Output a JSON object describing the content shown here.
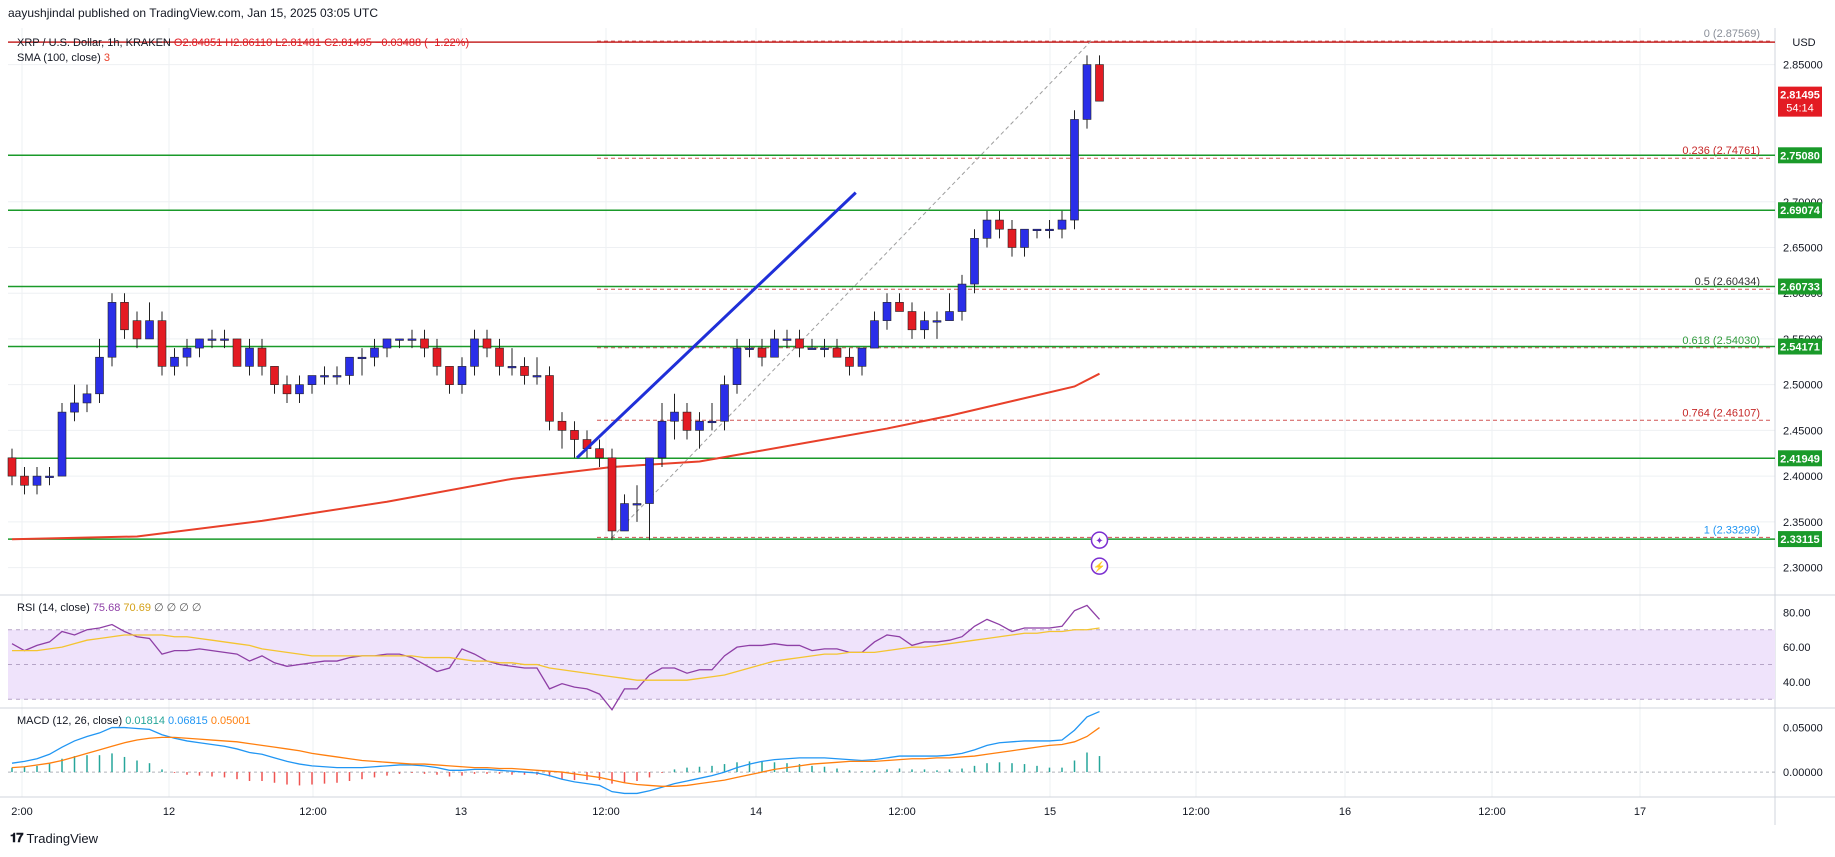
{
  "header": {
    "published": "aayushjindal published on TradingView.com, Jan 15, 2025 03:05 UTC"
  },
  "footer": {
    "brand": "TradingView",
    "logo_icon": "tradingview-logo-icon"
  },
  "colors": {
    "up": "#2a2ee8",
    "down": "#e31b23",
    "hline": "#1a9a2a",
    "trend": "#1f2fd8",
    "sma": "#e8402a",
    "fib": "#c62828",
    "rsi": "#8e3fa6",
    "rsi_ma": "#f4c430",
    "macd": "#2196f3",
    "signal": "#ff7f0e",
    "band": "#efe3fb"
  },
  "chart_data": [
    {
      "type": "candlestick",
      "title": "XRP / U.S. Dollar, 1h, KRAKEN",
      "ohlc_legend": {
        "open": "O2.84851",
        "high": "H2.86110",
        "low": "L2.81481",
        "close": "C2.81495",
        "change": "−0.03488 (−1.22%)"
      },
      "sma_label": "SMA (100, close)",
      "sma_value": "3",
      "currency": "USD",
      "ylim": [
        2.27,
        2.89
      ],
      "y_ticks": [
        "2.85000",
        "2.70000",
        "2.65000",
        "2.60000",
        "2.55000",
        "2.50000",
        "2.45000",
        "2.40000",
        "2.35000",
        "2.30000"
      ],
      "x_ticks": [
        "2:00",
        "12",
        "12:00",
        "13",
        "12:00",
        "14",
        "12:00",
        "15",
        "12:00",
        "16",
        "12:00",
        "17"
      ],
      "last_price": "2.81495",
      "countdown": "54:14",
      "horizontal_levels": [
        "2.75080",
        "2.69074",
        "2.60733",
        "2.54171",
        "2.41949",
        "2.33115"
      ],
      "fib_levels": [
        {
          "ratio": "0",
          "value": "2.87569",
          "text": "0 (2.87569)"
        },
        {
          "ratio": "0.236",
          "value": "2.74761",
          "text": "0.236 (2.74761)"
        },
        {
          "ratio": "0.5",
          "value": "2.60434",
          "text": "0.5 (2.60434)"
        },
        {
          "ratio": "0.618",
          "value": "2.54030",
          "text": "0.618 (2.54030)"
        },
        {
          "ratio": "0.764",
          "value": "2.46107",
          "text": "0.764 (2.46107)"
        },
        {
          "ratio": "1",
          "value": "2.33299",
          "text": "1 (2.33299)"
        }
      ],
      "trendline": {
        "from": [
          45.2,
          2.42
        ],
        "to": [
          67.5,
          2.71
        ]
      },
      "candles": [
        [
          0,
          2.42,
          2.43,
          2.39,
          2.4
        ],
        [
          1,
          2.4,
          2.41,
          2.38,
          2.39
        ],
        [
          2,
          2.39,
          2.41,
          2.38,
          2.4
        ],
        [
          3,
          2.4,
          2.41,
          2.39,
          2.4
        ],
        [
          4,
          2.4,
          2.48,
          2.4,
          2.47
        ],
        [
          5,
          2.47,
          2.5,
          2.46,
          2.48
        ],
        [
          6,
          2.48,
          2.5,
          2.47,
          2.49
        ],
        [
          7,
          2.49,
          2.55,
          2.48,
          2.53
        ],
        [
          8,
          2.53,
          2.6,
          2.52,
          2.59
        ],
        [
          9,
          2.59,
          2.6,
          2.55,
          2.56
        ],
        [
          10,
          2.57,
          2.58,
          2.54,
          2.55
        ],
        [
          11,
          2.55,
          2.59,
          2.55,
          2.57
        ],
        [
          12,
          2.57,
          2.58,
          2.51,
          2.52
        ],
        [
          13,
          2.52,
          2.54,
          2.51,
          2.53
        ],
        [
          14,
          2.53,
          2.55,
          2.52,
          2.54
        ],
        [
          15,
          2.54,
          2.55,
          2.53,
          2.55
        ],
        [
          16,
          2.55,
          2.56,
          2.54,
          2.55
        ],
        [
          17,
          2.55,
          2.56,
          2.54,
          2.55
        ],
        [
          18,
          2.55,
          2.55,
          2.52,
          2.52
        ],
        [
          19,
          2.52,
          2.55,
          2.51,
          2.54
        ],
        [
          20,
          2.54,
          2.55,
          2.51,
          2.52
        ],
        [
          21,
          2.52,
          2.52,
          2.49,
          2.5
        ],
        [
          22,
          2.5,
          2.51,
          2.48,
          2.49
        ],
        [
          23,
          2.49,
          2.51,
          2.48,
          2.5
        ],
        [
          24,
          2.5,
          2.51,
          2.49,
          2.51
        ],
        [
          25,
          2.51,
          2.52,
          2.5,
          2.51
        ],
        [
          26,
          2.51,
          2.52,
          2.5,
          2.51
        ],
        [
          27,
          2.51,
          2.53,
          2.5,
          2.53
        ],
        [
          28,
          2.53,
          2.54,
          2.51,
          2.53
        ],
        [
          29,
          2.53,
          2.55,
          2.52,
          2.54
        ],
        [
          30,
          2.54,
          2.55,
          2.53,
          2.55
        ],
        [
          31,
          2.55,
          2.55,
          2.54,
          2.55
        ],
        [
          32,
          2.55,
          2.56,
          2.54,
          2.55
        ],
        [
          33,
          2.55,
          2.56,
          2.53,
          2.54
        ],
        [
          34,
          2.54,
          2.55,
          2.51,
          2.52
        ],
        [
          35,
          2.52,
          2.52,
          2.49,
          2.5
        ],
        [
          36,
          2.5,
          2.53,
          2.49,
          2.52
        ],
        [
          37,
          2.52,
          2.56,
          2.51,
          2.55
        ],
        [
          38,
          2.55,
          2.56,
          2.53,
          2.54
        ],
        [
          39,
          2.54,
          2.55,
          2.51,
          2.52
        ],
        [
          40,
          2.52,
          2.54,
          2.51,
          2.52
        ],
        [
          41,
          2.52,
          2.53,
          2.5,
          2.51
        ],
        [
          42,
          2.51,
          2.53,
          2.5,
          2.51
        ],
        [
          43,
          2.51,
          2.52,
          2.45,
          2.46
        ],
        [
          44,
          2.46,
          2.47,
          2.43,
          2.45
        ],
        [
          45,
          2.45,
          2.46,
          2.42,
          2.44
        ],
        [
          46,
          2.44,
          2.45,
          2.42,
          2.43
        ],
        [
          47,
          2.43,
          2.44,
          2.41,
          2.42
        ],
        [
          48,
          2.42,
          2.43,
          2.33,
          2.34
        ],
        [
          49,
          2.34,
          2.38,
          2.34,
          2.37
        ],
        [
          50,
          2.37,
          2.39,
          2.35,
          2.37
        ],
        [
          51,
          2.37,
          2.42,
          2.33,
          2.42
        ],
        [
          52,
          2.42,
          2.48,
          2.41,
          2.46
        ],
        [
          53,
          2.46,
          2.49,
          2.44,
          2.47
        ],
        [
          54,
          2.47,
          2.48,
          2.44,
          2.45
        ],
        [
          55,
          2.45,
          2.47,
          2.43,
          2.46
        ],
        [
          56,
          2.46,
          2.48,
          2.45,
          2.46
        ],
        [
          57,
          2.46,
          2.51,
          2.45,
          2.5
        ],
        [
          58,
          2.5,
          2.55,
          2.49,
          2.54
        ],
        [
          59,
          2.54,
          2.55,
          2.53,
          2.54
        ],
        [
          60,
          2.54,
          2.55,
          2.52,
          2.53
        ],
        [
          61,
          2.53,
          2.56,
          2.53,
          2.55
        ],
        [
          62,
          2.55,
          2.56,
          2.54,
          2.55
        ],
        [
          63,
          2.55,
          2.56,
          2.53,
          2.54
        ],
        [
          64,
          2.54,
          2.55,
          2.54,
          2.54
        ],
        [
          65,
          2.54,
          2.55,
          2.53,
          2.54
        ],
        [
          66,
          2.54,
          2.55,
          2.53,
          2.53
        ],
        [
          67,
          2.53,
          2.54,
          2.51,
          2.52
        ],
        [
          68,
          2.52,
          2.54,
          2.51,
          2.54
        ],
        [
          69,
          2.54,
          2.58,
          2.54,
          2.57
        ],
        [
          70,
          2.57,
          2.6,
          2.56,
          2.59
        ],
        [
          71,
          2.59,
          2.6,
          2.58,
          2.58
        ],
        [
          72,
          2.58,
          2.59,
          2.55,
          2.56
        ],
        [
          73,
          2.56,
          2.58,
          2.55,
          2.57
        ],
        [
          74,
          2.57,
          2.58,
          2.55,
          2.57
        ],
        [
          75,
          2.57,
          2.6,
          2.57,
          2.58
        ],
        [
          76,
          2.58,
          2.62,
          2.57,
          2.61
        ],
        [
          77,
          2.61,
          2.67,
          2.6,
          2.66
        ],
        [
          78,
          2.66,
          2.69,
          2.65,
          2.68
        ],
        [
          79,
          2.68,
          2.69,
          2.66,
          2.67
        ],
        [
          80,
          2.67,
          2.68,
          2.64,
          2.65
        ],
        [
          81,
          2.65,
          2.67,
          2.64,
          2.67
        ],
        [
          82,
          2.67,
          2.67,
          2.66,
          2.67
        ],
        [
          83,
          2.67,
          2.68,
          2.66,
          2.67
        ],
        [
          84,
          2.67,
          2.69,
          2.66,
          2.68
        ],
        [
          85,
          2.68,
          2.8,
          2.67,
          2.79
        ],
        [
          86,
          2.79,
          2.86,
          2.78,
          2.85
        ],
        [
          87,
          2.85,
          2.86,
          2.81,
          2.81
        ]
      ],
      "sma_points": [
        [
          0,
          2.331
        ],
        [
          10,
          2.334
        ],
        [
          20,
          2.351
        ],
        [
          30,
          2.372
        ],
        [
          40,
          2.397
        ],
        [
          48,
          2.41
        ],
        [
          55,
          2.416
        ],
        [
          60,
          2.428
        ],
        [
          65,
          2.44
        ],
        [
          70,
          2.452
        ],
        [
          75,
          2.466
        ],
        [
          80,
          2.482
        ],
        [
          85,
          2.498
        ],
        [
          87,
          2.512
        ]
      ]
    },
    {
      "type": "line",
      "title": "RSI (14, close)",
      "legend_values": [
        "75.68",
        "70.69",
        "∅",
        "∅",
        "∅",
        "∅"
      ],
      "ylim": [
        25,
        90
      ],
      "y_ticks": [
        "80.00",
        "60.00",
        "40.00"
      ],
      "band": [
        30,
        70
      ],
      "series": [
        {
          "name": "RSI",
          "values": [
            62,
            58,
            61,
            63,
            69,
            67,
            70,
            71,
            73,
            69,
            66,
            65,
            56,
            58,
            58,
            59,
            58,
            57,
            56,
            52,
            55,
            51,
            49,
            50,
            51,
            52,
            52,
            54,
            55,
            55,
            56,
            56,
            54,
            50,
            46,
            48,
            59,
            56,
            52,
            50,
            49,
            48,
            48,
            36,
            39,
            37,
            36,
            33,
            24,
            36,
            36,
            44,
            48,
            48,
            45,
            47,
            47,
            55,
            60,
            61,
            61,
            62,
            61,
            61,
            58,
            59,
            59,
            57,
            57,
            63,
            67,
            66,
            61,
            63,
            63,
            64,
            66,
            72,
            76,
            73,
            69,
            71,
            71,
            71,
            72,
            81,
            84,
            76
          ]
        },
        {
          "name": "MA",
          "values": [
            58,
            58,
            58,
            59,
            60,
            62,
            64,
            65,
            66,
            67,
            67,
            67,
            67,
            66,
            66,
            65,
            64,
            63,
            62,
            61,
            59,
            58,
            57,
            56,
            55,
            55,
            55,
            55,
            55,
            55,
            55,
            55,
            55,
            54,
            54,
            54,
            53,
            52,
            52,
            51,
            51,
            50,
            50,
            48,
            47,
            46,
            45,
            44,
            43,
            42,
            41,
            41,
            41,
            41,
            41,
            42,
            43,
            44,
            46,
            48,
            50,
            52,
            53,
            54,
            55,
            56,
            56,
            57,
            57,
            57,
            58,
            59,
            60,
            60,
            61,
            62,
            63,
            64,
            65,
            66,
            67,
            68,
            68,
            69,
            69,
            70,
            70,
            71
          ]
        }
      ]
    },
    {
      "type": "line",
      "title": "MACD (12, 26, close)",
      "legend_values": [
        "0.01814",
        "0.06815",
        "0.05001"
      ],
      "ylim": [
        -0.028,
        0.072
      ],
      "y_ticks": [
        "0.05000",
        "0.00000"
      ],
      "series": [
        {
          "name": "MACD",
          "values": [
            0.01,
            0.012,
            0.015,
            0.02,
            0.028,
            0.035,
            0.04,
            0.044,
            0.05,
            0.05,
            0.049,
            0.048,
            0.042,
            0.038,
            0.035,
            0.033,
            0.031,
            0.029,
            0.026,
            0.022,
            0.02,
            0.016,
            0.012,
            0.009,
            0.007,
            0.006,
            0.005,
            0.005,
            0.005,
            0.006,
            0.007,
            0.008,
            0.008,
            0.007,
            0.005,
            0.002,
            0.002,
            0.003,
            0.003,
            0.002,
            0.001,
            0.0,
            -0.001,
            -0.004,
            -0.008,
            -0.011,
            -0.013,
            -0.015,
            -0.022,
            -0.024,
            -0.024,
            -0.021,
            -0.017,
            -0.013,
            -0.01,
            -0.007,
            -0.004,
            0.0,
            0.005,
            0.009,
            0.012,
            0.014,
            0.015,
            0.016,
            0.016,
            0.016,
            0.015,
            0.014,
            0.013,
            0.014,
            0.016,
            0.018,
            0.018,
            0.018,
            0.018,
            0.019,
            0.021,
            0.025,
            0.03,
            0.033,
            0.034,
            0.035,
            0.035,
            0.035,
            0.036,
            0.047,
            0.062,
            0.068
          ]
        },
        {
          "name": "Signal",
          "values": [
            0.005,
            0.006,
            0.008,
            0.01,
            0.013,
            0.017,
            0.021,
            0.025,
            0.029,
            0.033,
            0.036,
            0.038,
            0.039,
            0.039,
            0.038,
            0.037,
            0.036,
            0.035,
            0.034,
            0.032,
            0.03,
            0.028,
            0.026,
            0.024,
            0.021,
            0.019,
            0.017,
            0.015,
            0.013,
            0.012,
            0.011,
            0.01,
            0.009,
            0.009,
            0.008,
            0.007,
            0.006,
            0.005,
            0.005,
            0.004,
            0.004,
            0.003,
            0.002,
            0.001,
            0.0,
            -0.002,
            -0.004,
            -0.006,
            -0.009,
            -0.012,
            -0.014,
            -0.015,
            -0.016,
            -0.016,
            -0.015,
            -0.013,
            -0.011,
            -0.009,
            -0.006,
            -0.003,
            0.0,
            0.003,
            0.005,
            0.007,
            0.009,
            0.01,
            0.011,
            0.012,
            0.012,
            0.012,
            0.013,
            0.014,
            0.015,
            0.015,
            0.016,
            0.016,
            0.017,
            0.018,
            0.02,
            0.022,
            0.024,
            0.026,
            0.028,
            0.03,
            0.031,
            0.034,
            0.04,
            0.05
          ]
        }
      ]
    }
  ]
}
